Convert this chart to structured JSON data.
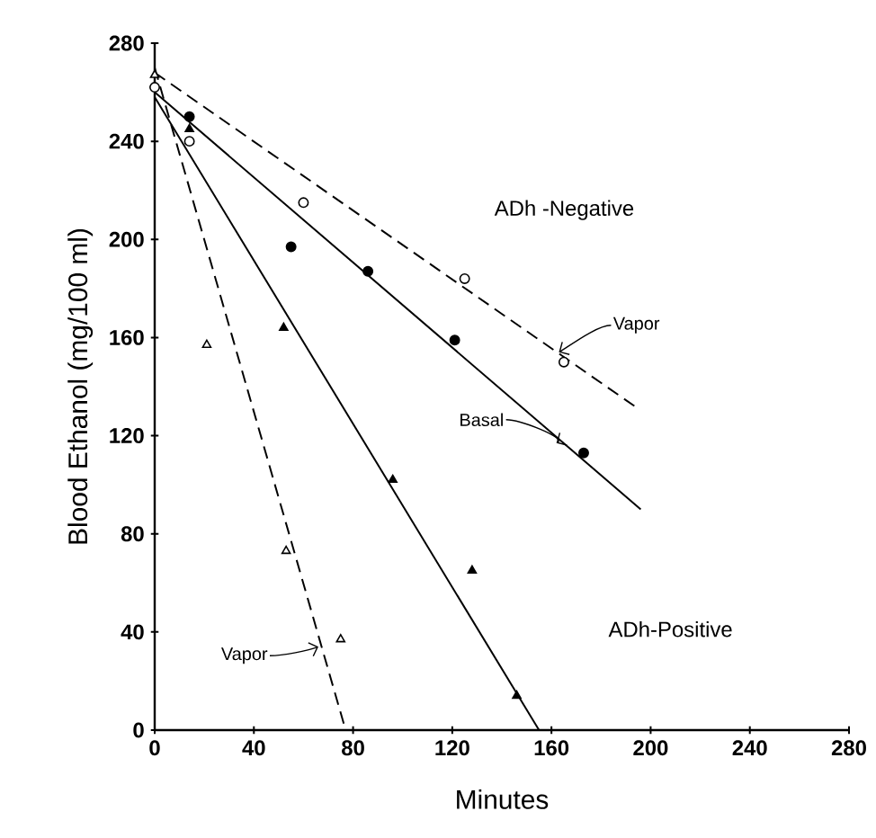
{
  "chart_data": {
    "type": "scatter",
    "xlabel": "Minutes",
    "ylabel": "Blood Ethanol (mg/100 ml)",
    "xlim": [
      0,
      280
    ],
    "ylim": [
      0,
      280
    ],
    "xticks": [
      0,
      40,
      80,
      120,
      160,
      200,
      240,
      280
    ],
    "yticks": [
      0,
      40,
      80,
      120,
      160,
      200,
      240,
      280
    ],
    "grid": false,
    "series": [
      {
        "type": "line",
        "line_style": "dashed",
        "color": "#000000",
        "x": [
          0,
          195
        ],
        "values": [
          268,
          131
        ]
      },
      {
        "type": "line",
        "line_style": "solid",
        "color": "#000000",
        "x": [
          0,
          196
        ],
        "values": [
          260,
          90
        ]
      },
      {
        "type": "line",
        "line_style": "solid",
        "color": "#000000",
        "x": [
          0,
          155
        ],
        "values": [
          258,
          0
        ]
      },
      {
        "type": "line",
        "line_style": "dashed",
        "color": "#000000",
        "x": [
          0,
          77
        ],
        "values": [
          270,
          0
        ]
      },
      {
        "marker": "circle",
        "color": "#ffffff",
        "x": [
          0,
          14,
          60,
          125,
          165
        ],
        "values": [
          262,
          240,
          215,
          184,
          150
        ]
      },
      {
        "marker": "circle",
        "color": "#000000",
        "x": [
          14,
          55,
          86,
          121,
          173
        ],
        "values": [
          250,
          197,
          187,
          159,
          113
        ]
      },
      {
        "marker": "triangle",
        "color": "#000000",
        "x": [
          14,
          52,
          96,
          128,
          146
        ],
        "values": [
          245,
          164,
          102,
          65,
          14
        ]
      },
      {
        "marker": "triangle",
        "color": "#ffffff",
        "x": [
          0,
          21,
          53,
          75
        ],
        "values": [
          267,
          157,
          73,
          37
        ]
      }
    ],
    "annotations": [
      "ADh -Negative",
      {
        "text": "Vapor",
        "x": 163,
        "y": 154
      },
      {
        "text": "Basal",
        "x": 162,
        "y": 117
      },
      "ADh-Positive",
      {
        "text": "Vapor",
        "x": 66,
        "y": 34
      }
    ]
  }
}
